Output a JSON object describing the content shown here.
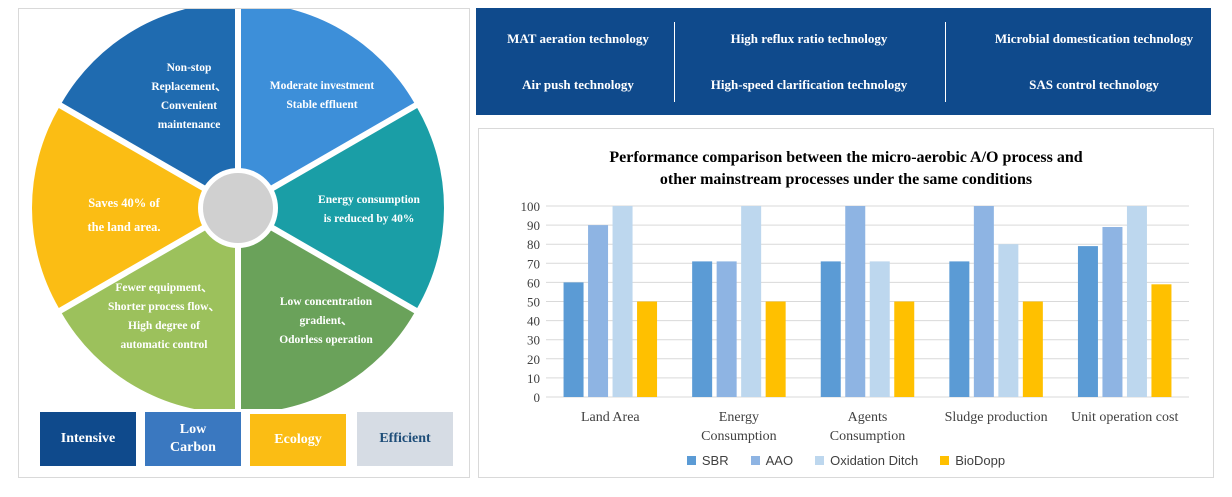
{
  "wheel": {
    "segments": [
      {
        "id": "non-stop",
        "text": [
          "Non-stop",
          "Replacement、",
          "Convenient",
          "maintenance"
        ],
        "color": "#1f6bb0"
      },
      {
        "id": "moderate-investment",
        "text": [
          "Moderate investment",
          "Stable  effluent"
        ],
        "color": "#3d8fd9"
      },
      {
        "id": "energy",
        "text": [
          "Energy consumption",
          "is reduced by 40%"
        ],
        "color": "#1a9ea6"
      },
      {
        "id": "low-concentration",
        "text": [
          "Low concentration",
          "gradient、",
          "Odorless operation"
        ],
        "color": "#6aa25a"
      },
      {
        "id": "fewer-equipment",
        "text": [
          "Fewer equipment、",
          "Shorter process flow、",
          "High degree of",
          "automatic control"
        ],
        "color": "#9cc15c"
      },
      {
        "id": "land",
        "text": [
          "Saves 40% of",
          "the land area."
        ],
        "color": "#fbbd14"
      }
    ],
    "hub_color": "#d0d0d0"
  },
  "badges": [
    {
      "label": "Intensive",
      "bg": "#0f4a8c",
      "color": "#ffffff"
    },
    {
      "label": "Low\nCarbon",
      "bg": "#3a78c0",
      "color": "#ffffff"
    },
    {
      "label": "Ecology",
      "bg": "#fbbd14",
      "color": "#ffffff"
    },
    {
      "label": "Efficient",
      "bg": "#d6dce4",
      "color": "#1f4e79"
    }
  ],
  "technologies": [
    "MAT aeration technology",
    "High reflux ratio technology",
    "Microbial domestication technology",
    "Air push technology",
    "High-speed clarification technology",
    "SAS control technology"
  ],
  "chart_data": {
    "type": "bar",
    "title": "Performance comparison between the micro-aerobic A/O process and other mainstream processes under the same conditions",
    "title_lines": [
      "Performance comparison between the micro-aerobic A/O process and",
      "other mainstream processes under the same conditions"
    ],
    "categories": [
      "Land Area",
      "Energy Consumption",
      "Agents Consumption",
      "Sludge production",
      "Unit operation cost"
    ],
    "category_lines": [
      [
        "Land Area"
      ],
      [
        "Energy",
        "Consumption"
      ],
      [
        "Agents",
        "Consumption"
      ],
      [
        "Sludge production"
      ],
      [
        "Unit operation cost"
      ]
    ],
    "series": [
      {
        "name": "SBR",
        "color": "#5b9bd5",
        "values": [
          60,
          71,
          71,
          71,
          79
        ]
      },
      {
        "name": "AAO",
        "color": "#8eb4e3",
        "values": [
          90,
          71,
          100,
          100,
          89
        ]
      },
      {
        "name": "Oxidation Ditch",
        "color": "#bdd7ee",
        "values": [
          100,
          100,
          71,
          80,
          100
        ]
      },
      {
        "name": "BioDopp",
        "color": "#ffc000",
        "values": [
          50,
          50,
          50,
          50,
          59
        ]
      }
    ],
    "yticks": [
      0,
      10,
      20,
      30,
      40,
      50,
      60,
      70,
      80,
      90,
      100
    ],
    "ylim": [
      0,
      100
    ],
    "grid": true,
    "legend_position": "bottom"
  }
}
